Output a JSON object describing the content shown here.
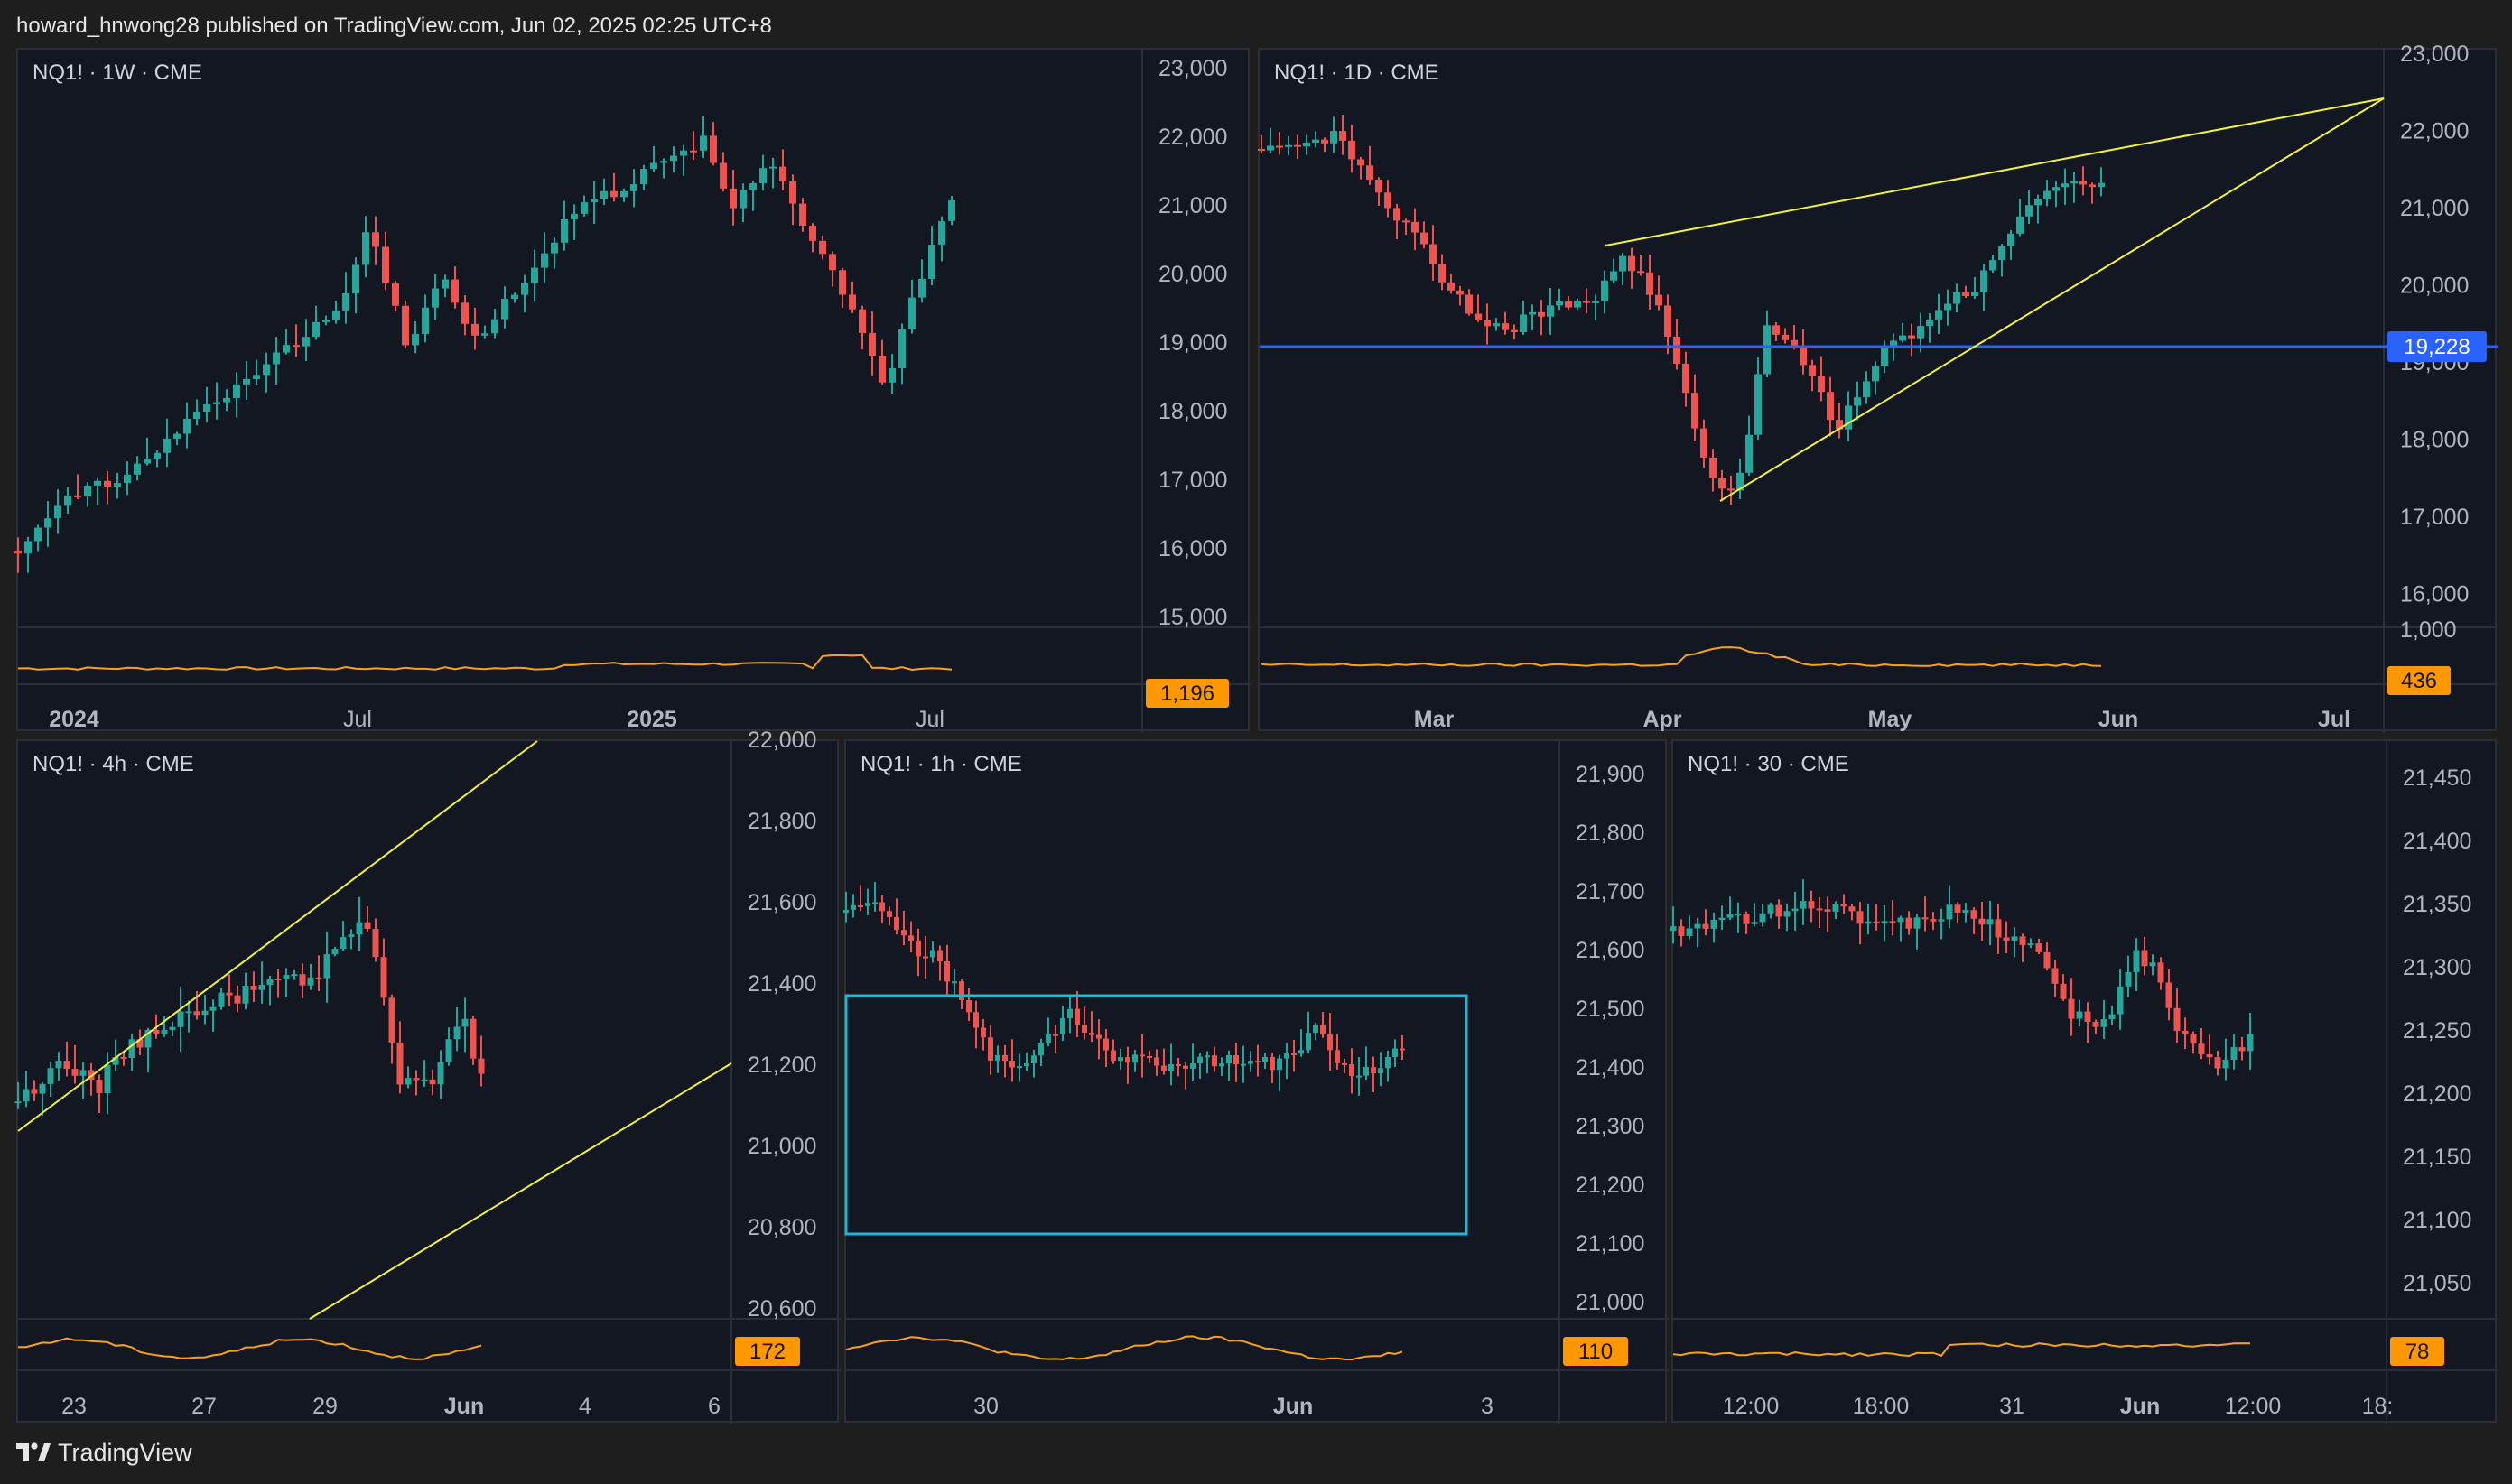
{
  "header": {
    "publish_info": "howard_hnwong28 published on TradingView.com, Jun 02, 2025 02:25 UTC+8"
  },
  "footer": {
    "brand_name": "TradingView",
    "logo_icon": "tradingview-logo-icon"
  },
  "colors": {
    "up": "#26a69a",
    "down": "#ef5350",
    "trendline": "#f2f23a",
    "support": "#2962ff",
    "rectangle": "#22b5d6",
    "volume_line": "#f7a21b",
    "badge_bg": "#ff9800",
    "background": "#131722",
    "border": "#2a2e39"
  },
  "panels": [
    {
      "id": "weekly",
      "label": "NQ1! · 1W · CME",
      "y_ticks": [
        "23,000",
        "22,000",
        "21,000",
        "20,000",
        "19,000",
        "18,000",
        "17,000",
        "16,000",
        "15,000"
      ],
      "x_ticks": [
        {
          "text": "2024",
          "bold": true
        },
        {
          "text": "Jul",
          "bold": false
        },
        {
          "text": "2025",
          "bold": true
        },
        {
          "text": "Jul",
          "bold": false
        }
      ],
      "volume_badge": "1,196"
    },
    {
      "id": "daily",
      "label": "NQ1! · 1D · CME",
      "y_ticks": [
        "23,000",
        "22,000",
        "21,000",
        "20,000",
        "19,000",
        "18,000",
        "17,000",
        "16,000"
      ],
      "x_ticks": [
        {
          "text": "Mar",
          "bold": true
        },
        {
          "text": "Apr",
          "bold": true
        },
        {
          "text": "May",
          "bold": true
        },
        {
          "text": "Jun",
          "bold": true
        },
        {
          "text": "Jul",
          "bold": true
        }
      ],
      "price_badge": "19,228",
      "volume_top_tick": "1,000",
      "volume_badge": "436"
    },
    {
      "id": "h4",
      "label": "NQ1! · 4h · CME",
      "y_ticks": [
        "22,000",
        "21,800",
        "21,600",
        "21,400",
        "21,200",
        "21,000",
        "20,800",
        "20,600"
      ],
      "x_ticks": [
        {
          "text": "23",
          "bold": false
        },
        {
          "text": "27",
          "bold": false
        },
        {
          "text": "29",
          "bold": false
        },
        {
          "text": "Jun",
          "bold": true
        },
        {
          "text": "4",
          "bold": false
        },
        {
          "text": "6",
          "bold": false
        }
      ],
      "volume_badge": "172"
    },
    {
      "id": "h1",
      "label": "NQ1! · 1h · CME",
      "y_ticks": [
        "21,900",
        "21,800",
        "21,700",
        "21,600",
        "21,500",
        "21,400",
        "21,300",
        "21,200",
        "21,100",
        "21,000"
      ],
      "x_ticks": [
        {
          "text": "30",
          "bold": false
        },
        {
          "text": "Jun",
          "bold": true
        },
        {
          "text": "3",
          "bold": false
        }
      ],
      "volume_badge": "110"
    },
    {
      "id": "m30",
      "label": "NQ1! · 30 · CME",
      "y_ticks": [
        "21,450",
        "21,400",
        "21,350",
        "21,300",
        "21,250",
        "21,200",
        "21,150",
        "21,100",
        "21,050"
      ],
      "x_ticks": [
        {
          "text": "12:00",
          "bold": false
        },
        {
          "text": "18:00",
          "bold": false
        },
        {
          "text": "31",
          "bold": false
        },
        {
          "text": "Jun",
          "bold": true
        },
        {
          "text": "12:00",
          "bold": false
        },
        {
          "text": "18:",
          "bold": false
        }
      ],
      "volume_badge": "78"
    }
  ]
}
